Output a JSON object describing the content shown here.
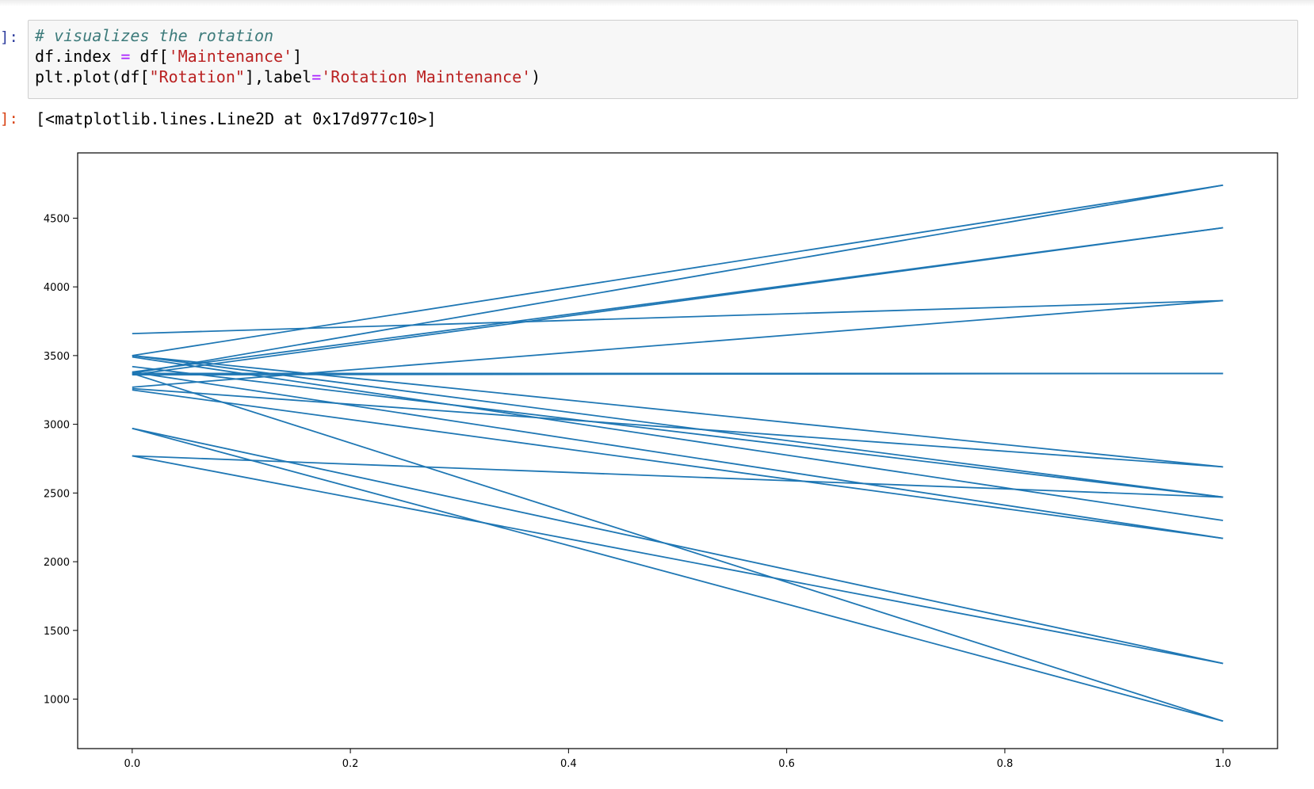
{
  "input_cell": {
    "prompt": "]:",
    "code": {
      "comment": "# visualizes the rotation",
      "line2": {
        "pre": "df.index ",
        "op": "=",
        "mid": " df[",
        "str": "'Maintenance'",
        "post": "]"
      },
      "line3": {
        "pre": "plt.plot(df[",
        "str1": "\"Rotation\"",
        "mid": "],label",
        "op": "=",
        "str2": "'Rotation Maintenance'",
        "post": ")"
      }
    }
  },
  "output_cell": {
    "prompt": "]:",
    "text": "[<matplotlib.lines.Line2D at 0x17d977c10>]"
  },
  "chart_data": {
    "type": "line",
    "title": "",
    "xlabel": "",
    "ylabel": "",
    "xlim": [
      -0.05,
      1.05
    ],
    "ylim": [
      640,
      4975
    ],
    "xticks": [
      0.0,
      0.2,
      0.4,
      0.6,
      0.8,
      1.0
    ],
    "xtick_labels": [
      "0.0",
      "0.2",
      "0.4",
      "0.6",
      "0.8",
      "1.0"
    ],
    "yticks": [
      1000,
      1500,
      2000,
      2500,
      3000,
      3500,
      4000,
      4500
    ],
    "ytick_labels": [
      "1000",
      "1500",
      "2000",
      "2500",
      "3000",
      "3500",
      "4000",
      "4500"
    ],
    "grid": false,
    "line_color": "#1f77b4",
    "segments": [
      {
        "x": [
          0,
          1
        ],
        "y": [
          3500,
          4740
        ]
      },
      {
        "x": [
          0,
          1
        ],
        "y": [
          3370,
          4740
        ]
      },
      {
        "x": [
          0,
          1
        ],
        "y": [
          3360,
          4430
        ]
      },
      {
        "x": [
          0,
          1
        ],
        "y": [
          3380,
          4430
        ]
      },
      {
        "x": [
          0,
          1
        ],
        "y": [
          3660,
          3900
        ]
      },
      {
        "x": [
          0,
          1
        ],
        "y": [
          3270,
          3900
        ]
      },
      {
        "x": [
          0,
          1
        ],
        "y": [
          3370,
          3370
        ]
      },
      {
        "x": [
          0,
          1
        ],
        "y": [
          3360,
          3370
        ]
      },
      {
        "x": [
          0,
          1
        ],
        "y": [
          3500,
          2690
        ]
      },
      {
        "x": [
          0,
          1
        ],
        "y": [
          3260,
          2690
        ]
      },
      {
        "x": [
          0,
          1
        ],
        "y": [
          3500,
          2470
        ]
      },
      {
        "x": [
          0,
          1
        ],
        "y": [
          3420,
          2470
        ]
      },
      {
        "x": [
          0,
          1
        ],
        "y": [
          2770,
          2470
        ]
      },
      {
        "x": [
          0,
          1
        ],
        "y": [
          3490,
          2300
        ]
      },
      {
        "x": [
          0,
          1
        ],
        "y": [
          3380,
          2170
        ]
      },
      {
        "x": [
          0,
          1
        ],
        "y": [
          3250,
          2170
        ]
      },
      {
        "x": [
          0,
          1
        ],
        "y": [
          2970,
          1260
        ]
      },
      {
        "x": [
          0,
          1
        ],
        "y": [
          2770,
          1260
        ]
      },
      {
        "x": [
          0,
          1
        ],
        "y": [
          2970,
          840
        ]
      },
      {
        "x": [
          0,
          1
        ],
        "y": [
          3370,
          840
        ]
      }
    ]
  }
}
